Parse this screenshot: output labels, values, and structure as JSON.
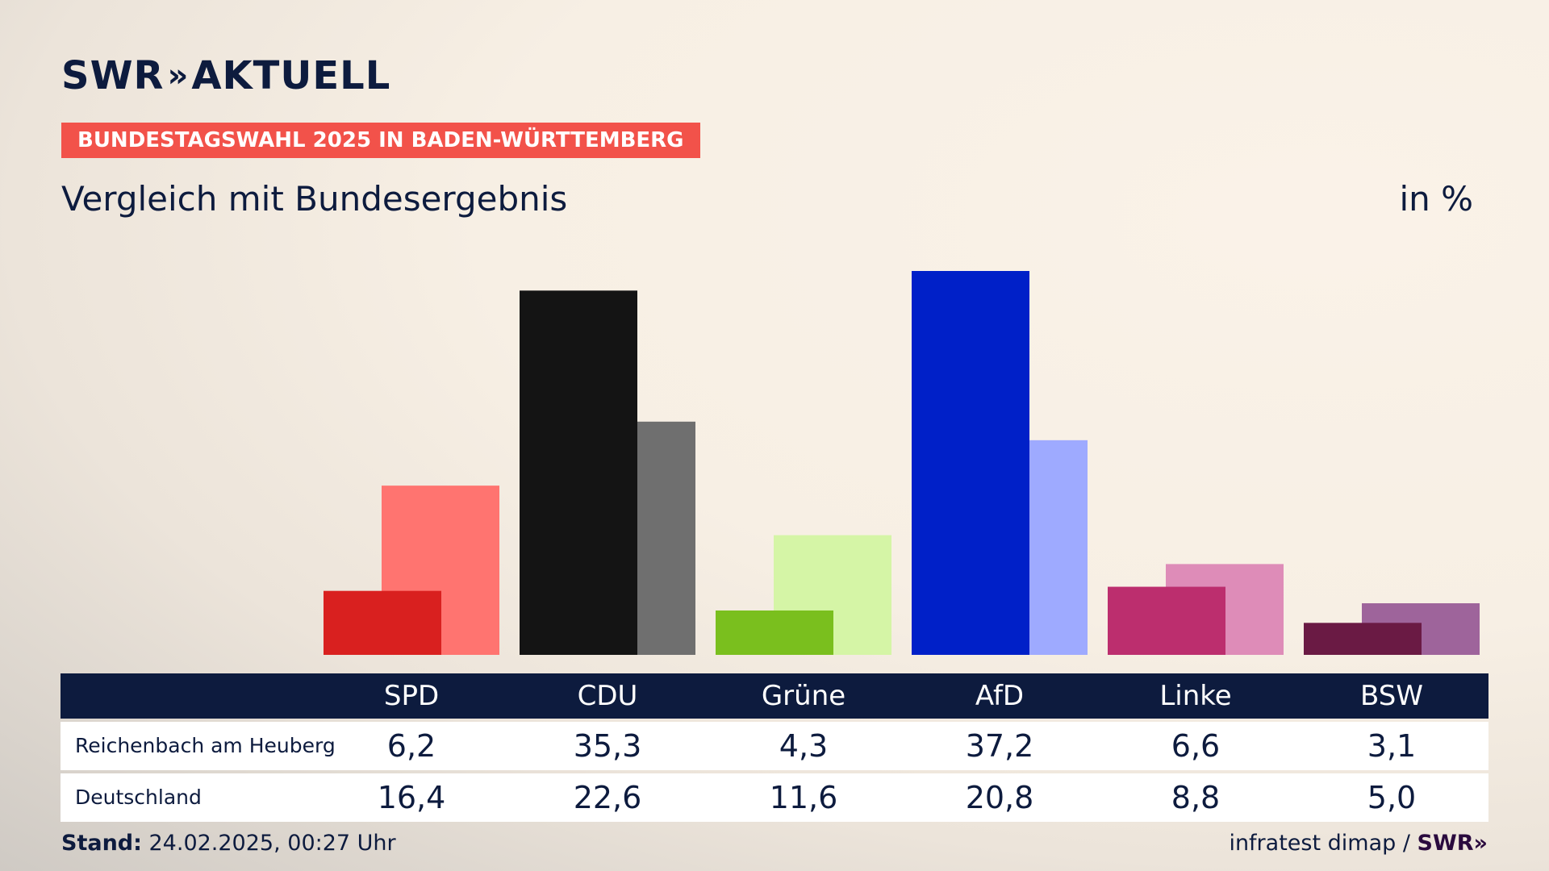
{
  "header": {
    "logo_text": "SWR",
    "logo_chevrons": "»",
    "logo_suffix": "AKTUELL",
    "tag": "BUNDESTAGSWAHL 2025 IN BADEN-WÜRTTEMBERG",
    "title": "Vergleich mit Bundesergebnis",
    "unit": "in %"
  },
  "chart_data": {
    "type": "bar",
    "categories": [
      "SPD",
      "CDU",
      "Grüne",
      "AfD",
      "Linke",
      "BSW"
    ],
    "series": [
      {
        "name": "Reichenbach am Heuberg",
        "values": [
          6.2,
          35.3,
          4.3,
          37.2,
          6.6,
          3.1
        ],
        "display": [
          "6,2",
          "35,3",
          "4,3",
          "37,2",
          "6,6",
          "3,1"
        ]
      },
      {
        "name": "Deutschland",
        "values": [
          16.4,
          22.6,
          11.6,
          20.8,
          8.8,
          5.0
        ],
        "display": [
          "16,4",
          "22,6",
          "11,6",
          "20,8",
          "8,8",
          "5,0"
        ]
      }
    ],
    "colors_primary": [
      "#d9201f",
      "#141414",
      "#7abf1e",
      "#0020c8",
      "#bc2e6e",
      "#6a1a44"
    ],
    "colors_secondary": [
      "#ff7470",
      "#6f6f6f",
      "#d5f5a6",
      "#9eaaff",
      "#de8cb8",
      "#9e649b"
    ],
    "ylim": [
      0,
      37.2
    ]
  },
  "footer": {
    "stand_label": "Stand:",
    "stand_value": " 24.02.2025, 00:27 Uhr",
    "source": "infratest dimap / ",
    "source_brand": "SWR»"
  }
}
